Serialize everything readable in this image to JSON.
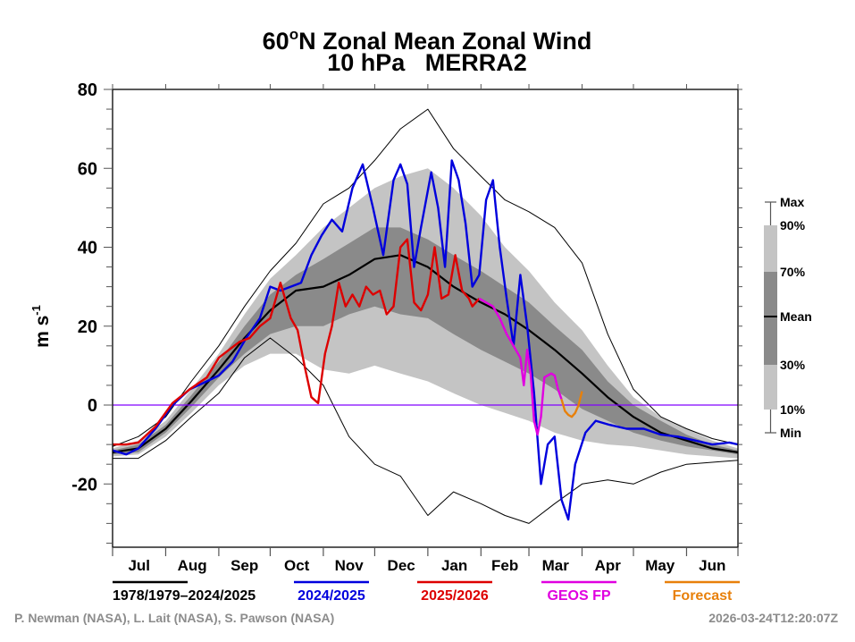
{
  "chart_data": {
    "type": "line",
    "title": "60°N Zonal Mean Zonal Wind",
    "title_parts": {
      "pre": "60",
      "sup": "o",
      "post": "N Zonal Mean Zonal Wind"
    },
    "subtitle": "10 hPa   MERRA2",
    "xlabel": "",
    "ylabel": {
      "base": "m s",
      "sup": "-1"
    },
    "ylim": [
      -36,
      80
    ],
    "yticks": [
      80,
      60,
      40,
      20,
      0,
      -20
    ],
    "ytick_labels": [
      "80",
      "60",
      "40",
      "20",
      "0",
      "-20"
    ],
    "yminor_step": 5,
    "x_unit": "days since Jul 1",
    "xlim": [
      0,
      365
    ],
    "month_starts": [
      0,
      31,
      62,
      92,
      123,
      153,
      184,
      215,
      243,
      274,
      304,
      335,
      365
    ],
    "months": [
      "Jul",
      "Aug",
      "Sep",
      "Oct",
      "Nov",
      "Dec",
      "Jan",
      "Feb",
      "Mar",
      "Apr",
      "May",
      "Jun"
    ],
    "zero_line_color": "#8000ff",
    "legend_position": "bottom",
    "legend": [
      {
        "label": "1978/1979–2024/2025",
        "color": "#000000"
      },
      {
        "label": "2024/2025",
        "color": "#0000dd"
      },
      {
        "label": "2025/2026",
        "color": "#dd0000"
      },
      {
        "label": "GEOS FP",
        "color": "#e000e0"
      },
      {
        "label": "Forecast",
        "color": "#e8800a"
      }
    ],
    "key": {
      "labels": [
        "Max",
        "90%",
        "70%",
        "Mean",
        "30%",
        "10%",
        "Min"
      ],
      "band_colors": {
        "outer": "#c4c4c4",
        "inner": "#8a8a8a"
      }
    },
    "climatology": {
      "x": [
        0,
        15,
        31,
        46,
        62,
        77,
        92,
        107,
        123,
        138,
        153,
        168,
        184,
        199,
        215,
        229,
        243,
        258,
        274,
        289,
        304,
        320,
        335,
        350,
        365
      ],
      "mean": [
        -12,
        -11,
        -6,
        1,
        9,
        17,
        24,
        29,
        30,
        33,
        37,
        38,
        35,
        30,
        26,
        23,
        19,
        14,
        8,
        2,
        -3,
        -7,
        -9,
        -11,
        -12
      ],
      "p30": [
        -12.5,
        -12,
        -7,
        -0.5,
        7,
        13,
        18,
        20,
        20,
        23,
        25,
        23,
        22,
        18,
        14,
        11,
        8,
        4,
        -1,
        -4,
        -7,
        -9,
        -10.5,
        -11.5,
        -12.5
      ],
      "p70": [
        -11.5,
        -10,
        -5,
        2.5,
        11,
        20,
        28,
        33,
        37,
        41,
        45,
        45,
        42,
        38,
        34,
        30,
        26,
        20,
        14,
        6,
        0,
        -4,
        -7.5,
        -10,
        -11.5
      ],
      "p10": [
        -13,
        -12.5,
        -8,
        -2,
        5,
        10,
        13,
        13,
        9,
        8,
        10,
        8,
        6,
        3,
        0,
        -2,
        -4,
        -7,
        -9,
        -10,
        -10.5,
        -11.5,
        -12.5,
        -13,
        -13.5
      ],
      "p90": [
        -11,
        -9,
        -4,
        4,
        13,
        23,
        32,
        38,
        45,
        50,
        55,
        58,
        60,
        55,
        48,
        40,
        34,
        26,
        19,
        10,
        2,
        -3,
        -6,
        -9,
        -11
      ],
      "max": [
        -10.5,
        -8,
        -3,
        6,
        15,
        25,
        34,
        41,
        51,
        55,
        62,
        70,
        75,
        65,
        58,
        52,
        49,
        45,
        36,
        18,
        4,
        -3,
        -6,
        -8.5,
        -10
      ],
      "min": [
        -13.5,
        -13.5,
        -9,
        -3,
        3,
        12,
        17,
        12,
        5,
        -8,
        -15,
        -18,
        -28,
        -22,
        -25,
        -28,
        -30,
        -25,
        -20,
        -19,
        -20,
        -17,
        -15,
        -14.5,
        -14
      ]
    },
    "series": [
      {
        "name": "2024/2025",
        "color": "#0000dd",
        "x": [
          0,
          8,
          15,
          25,
          35,
          45,
          55,
          62,
          70,
          78,
          86,
          92,
          98,
          104,
          110,
          116,
          122,
          128,
          134,
          140,
          146,
          152,
          158,
          164,
          168,
          172,
          176,
          180,
          186,
          190,
          194,
          198,
          202,
          206,
          210,
          214,
          218,
          222,
          226,
          230,
          234,
          238,
          242,
          246,
          250,
          254,
          258,
          262,
          266,
          270,
          276,
          282,
          290,
          300,
          310,
          320,
          330,
          340,
          350,
          360,
          365
        ],
        "y": [
          -11.5,
          -12.5,
          -11,
          -6,
          0,
          4,
          6,
          7.5,
          11,
          17,
          22,
          30,
          29,
          30,
          31,
          38,
          43,
          47,
          44,
          55,
          61,
          50,
          38,
          57,
          61,
          56,
          35,
          45,
          59,
          50,
          35,
          62,
          57,
          46,
          30,
          33,
          52,
          57,
          40,
          27,
          15,
          33,
          20,
          3,
          -20,
          -10,
          -8,
          -24,
          -29,
          -15,
          -7,
          -4,
          -5,
          -6,
          -6,
          -7.5,
          -8,
          -9,
          -10,
          -9.5,
          -10
        ]
      },
      {
        "name": "2025/2026",
        "color": "#dd0000",
        "x": [
          0,
          8,
          15,
          25,
          35,
          45,
          55,
          62,
          68,
          74,
          80,
          86,
          92,
          98,
          104,
          108,
          112,
          116,
          120,
          124,
          128,
          132,
          136,
          140,
          144,
          148,
          152,
          156,
          160,
          164,
          168,
          172,
          176,
          180,
          184,
          188,
          192,
          196,
          200,
          204,
          208,
          210,
          214
        ],
        "y": [
          -10,
          -10,
          -9.5,
          -5.5,
          0.5,
          4,
          7,
          12,
          14,
          16,
          17,
          20,
          22,
          31,
          22,
          19,
          10,
          2,
          0.5,
          13,
          20,
          31,
          25,
          28,
          25,
          30,
          28,
          29,
          23,
          25,
          40,
          42,
          26,
          24,
          28,
          40,
          27,
          28,
          38,
          29,
          27,
          25,
          27
        ]
      },
      {
        "name": "GEOS FP",
        "color": "#e000e0",
        "x": [
          214,
          218,
          222,
          226,
          230,
          234,
          238,
          240,
          242,
          244,
          246,
          248,
          250,
          252,
          256,
          258,
          260,
          262
        ],
        "y": [
          27,
          26,
          25,
          22,
          18,
          15,
          12,
          5,
          14,
          8,
          -4,
          -7.5,
          -3,
          7,
          8,
          7.5,
          4,
          1.5
        ]
      },
      {
        "name": "Forecast",
        "color": "#e8800a",
        "x": [
          262,
          264,
          266,
          268,
          270,
          272,
          274
        ],
        "y": [
          1.5,
          -1.5,
          -2.5,
          -3,
          -2,
          0,
          3.5
        ]
      }
    ]
  },
  "footer": {
    "credits": "P. Newman (NASA), L. Lait (NASA), S. Pawson (NASA)",
    "timestamp": "2026-03-24T12:20:07Z"
  }
}
